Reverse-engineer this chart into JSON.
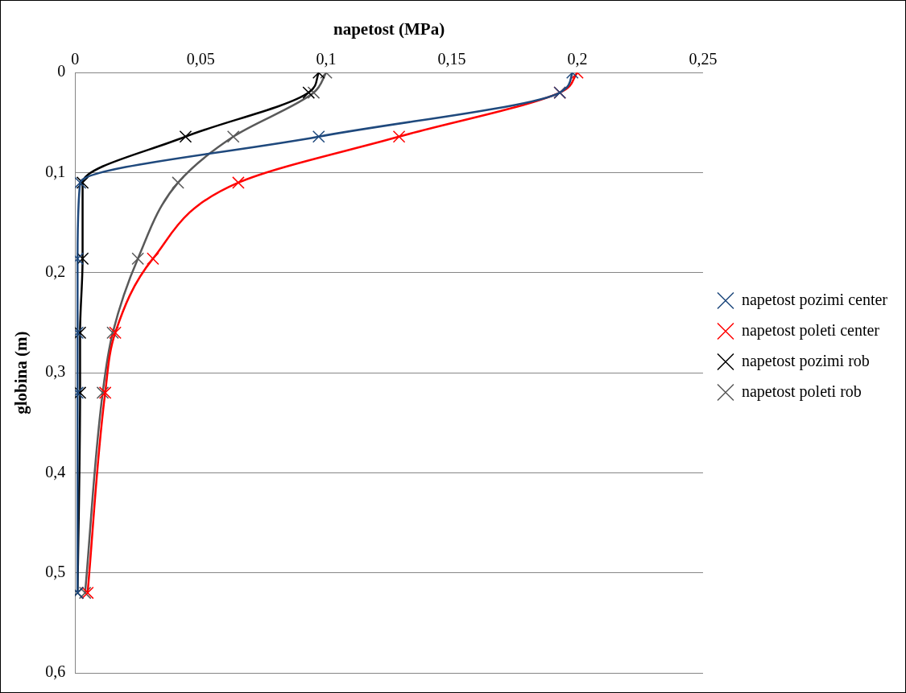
{
  "chart_data": {
    "type": "line",
    "xlabel": "napetost (MPa)",
    "ylabel": "globina (m)",
    "series": [
      {
        "name": "napetost pozimi center",
        "color": "#1f497d",
        "x": [
          0.198,
          0.193,
          0.097,
          0.002,
          0.001,
          0.001,
          0.001,
          0.001
        ],
        "values": [
          0,
          0.02,
          0.064,
          0.11,
          0.186,
          0.26,
          0.32,
          0.52
        ]
      },
      {
        "name": "napetost poleti center",
        "color": "#ff0000",
        "x": [
          0.2,
          0.193,
          0.129,
          0.065,
          0.031,
          0.016,
          0.012,
          0.005
        ],
        "values": [
          0,
          0.02,
          0.064,
          0.11,
          0.186,
          0.26,
          0.32,
          0.52
        ]
      },
      {
        "name": "napetost pozimi rob",
        "color": "#000000",
        "x": [
          0.097,
          0.093,
          0.044,
          0.003,
          0.003,
          0.002,
          0.002,
          0.001
        ],
        "values": [
          0,
          0.02,
          0.064,
          0.11,
          0.186,
          0.26,
          0.32,
          0.52
        ]
      },
      {
        "name": "napetost poleti rob",
        "color": "#595959",
        "x": [
          0.1,
          0.095,
          0.063,
          0.041,
          0.025,
          0.015,
          0.011,
          0.004
        ],
        "values": [
          0,
          0.02,
          0.064,
          0.11,
          0.186,
          0.26,
          0.32,
          0.52
        ]
      }
    ],
    "xlim": [
      0,
      0.25
    ],
    "xticks": [
      0,
      {
        "value": 0.05,
        "label": "0,05"
      },
      {
        "value": 0.1,
        "label": "0,1"
      },
      {
        "value": 0.15,
        "label": "0,15"
      },
      {
        "value": 0.2,
        "label": "0,2"
      },
      {
        "value": 0.25,
        "label": "0,25"
      }
    ],
    "ylim": [
      0.6,
      0
    ],
    "yticks": [
      0,
      {
        "value": 0.1,
        "label": "0,1"
      },
      {
        "value": 0.2,
        "label": "0,2"
      },
      {
        "value": 0.3,
        "label": "0,3"
      },
      {
        "value": 0.4,
        "label": "0,4"
      },
      {
        "value": 0.5,
        "label": "0,5"
      },
      {
        "value": 0.6,
        "label": "0,6"
      }
    ],
    "grid": "y",
    "legend": "right",
    "marker": "cross",
    "line_style": "solid"
  }
}
